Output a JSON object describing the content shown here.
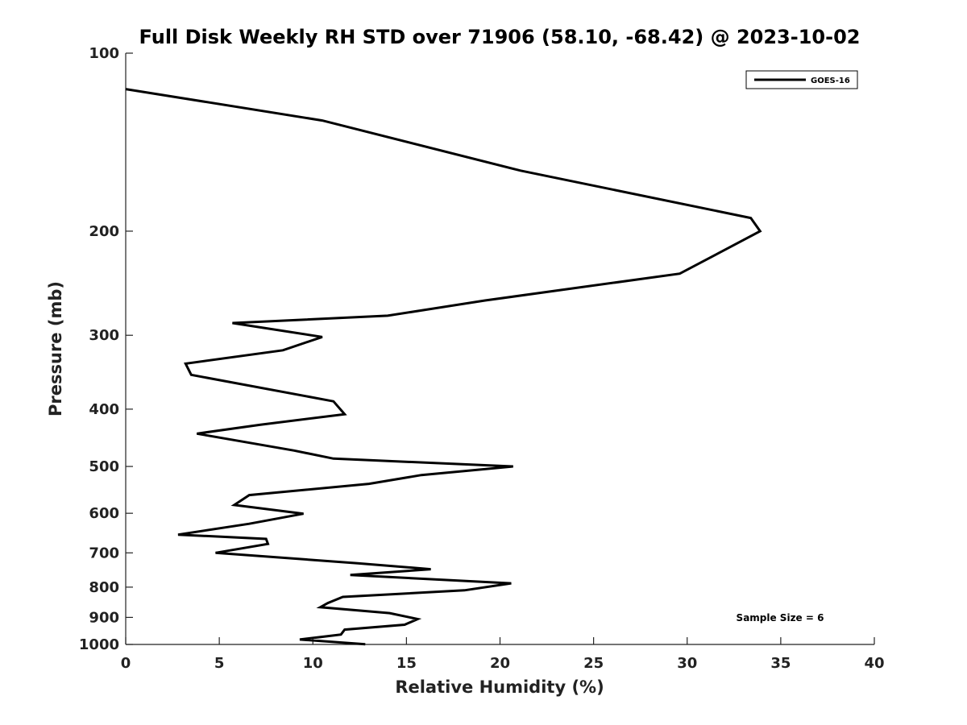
{
  "chart_data": {
    "type": "line",
    "title": "Full Disk Weekly RH STD over 71906 (58.10, -68.42) @ 2023-10-02",
    "xlabel": "Relative Humidity (%)",
    "ylabel": "Pressure (mb)",
    "xlim": [
      0,
      40
    ],
    "ylim": [
      100,
      1000
    ],
    "yscale": "log",
    "y_reversed": true,
    "xticks": [
      0,
      5,
      10,
      15,
      20,
      25,
      30,
      35,
      40
    ],
    "yticks": [
      100,
      200,
      300,
      400,
      500,
      600,
      700,
      800,
      900,
      1000
    ],
    "grid": false,
    "legend_position": "top-right",
    "annotation": "Sample Size = 6",
    "series": [
      {
        "name": "GOES-16",
        "color": "#000000",
        "x": [
          0,
          10.5,
          21.1,
          33.4,
          33.9,
          29.6,
          19.2,
          14.0,
          5.7,
          10.5,
          8.4,
          3.2,
          3.5,
          11.1,
          11.7,
          7.2,
          3.8,
          9.0,
          11.1,
          20.7,
          15.8,
          13.0,
          6.6,
          5.8,
          9.5,
          6.6,
          2.8,
          7.5,
          7.6,
          4.8,
          12.4,
          16.3,
          12.0,
          20.6,
          18.1,
          11.6,
          10.8,
          10.4,
          14.1,
          15.6,
          14.9,
          11.7,
          11.5,
          9.3,
          12.8
        ],
        "y": [
          115,
          130,
          158,
          190,
          200,
          236,
          262,
          278,
          286,
          302,
          318,
          335,
          350,
          388,
          408,
          425,
          440,
          470,
          485,
          500,
          517,
          535,
          559,
          581,
          601,
          625,
          652,
          663,
          676,
          700,
          729,
          746,
          763,
          788,
          810,
          831,
          851,
          865,
          885,
          906,
          926,
          944,
          962,
          981,
          999
        ]
      }
    ]
  }
}
